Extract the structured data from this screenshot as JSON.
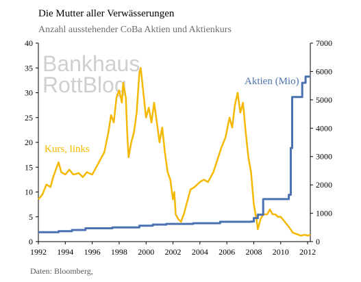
{
  "title": "Die Mutter aller Verwässerungen",
  "subtitle": "Anzahl ausstehender CoBa Aktien und Aktienkurs",
  "source": "Daten: Bloomberg,",
  "watermark": [
    "Bankhaus",
    "RottBlog"
  ],
  "colors": {
    "kurs": "#f5b800",
    "aktien": "#4a72b0",
    "axis": "#000000"
  },
  "chart_data": {
    "type": "line",
    "title": "Die Mutter aller Verwässerungen",
    "subtitle": "Anzahl ausstehender CoBa Aktien und Aktienkurs",
    "x_ticks": [
      "1992",
      "1994",
      "1996",
      "1998",
      "2000",
      "2002",
      "2004",
      "2006",
      "2008",
      "2010",
      "2012"
    ],
    "xlim": [
      1992,
      2012.2
    ],
    "y_left_ticks": [
      "0",
      "5",
      "10",
      "15",
      "20",
      "25",
      "30",
      "35",
      "40"
    ],
    "ylim_left": [
      0,
      40
    ],
    "y_right_ticks": [
      "0",
      "1000",
      "2000",
      "3000",
      "4000",
      "5000",
      "6000",
      "7000"
    ],
    "ylim_right": [
      0,
      7000
    ],
    "grid": false,
    "series": [
      {
        "name": "Kurs, links",
        "axis": "left",
        "color": "#f5b800",
        "points": [
          [
            1992.0,
            8.5
          ],
          [
            1992.3,
            9.5
          ],
          [
            1992.6,
            11.5
          ],
          [
            1992.9,
            11.0
          ],
          [
            1993.1,
            13.0
          ],
          [
            1993.3,
            14.5
          ],
          [
            1993.5,
            16.0
          ],
          [
            1993.7,
            14.0
          ],
          [
            1994.0,
            13.5
          ],
          [
            1994.3,
            14.5
          ],
          [
            1994.6,
            13.5
          ],
          [
            1995.0,
            13.8
          ],
          [
            1995.3,
            13.0
          ],
          [
            1995.6,
            14.0
          ],
          [
            1996.0,
            13.5
          ],
          [
            1996.3,
            15.0
          ],
          [
            1996.6,
            16.5
          ],
          [
            1996.9,
            18.0
          ],
          [
            1997.2,
            22.0
          ],
          [
            1997.4,
            25.5
          ],
          [
            1997.6,
            24.0
          ],
          [
            1997.8,
            29.0
          ],
          [
            1998.0,
            30.5
          ],
          [
            1998.2,
            28.0
          ],
          [
            1998.3,
            32.0
          ],
          [
            1998.5,
            29.0
          ],
          [
            1998.6,
            22.0
          ],
          [
            1998.7,
            17.0
          ],
          [
            1998.9,
            20.0
          ],
          [
            1999.1,
            22.0
          ],
          [
            1999.3,
            26.0
          ],
          [
            1999.5,
            34.0
          ],
          [
            1999.6,
            35.0
          ],
          [
            1999.8,
            30.0
          ],
          [
            2000.0,
            25.0
          ],
          [
            2000.2,
            27.0
          ],
          [
            2000.4,
            24.0
          ],
          [
            2000.6,
            28.0
          ],
          [
            2000.8,
            24.0
          ],
          [
            2001.0,
            20.0
          ],
          [
            2001.2,
            23.0
          ],
          [
            2001.4,
            18.0
          ],
          [
            2001.6,
            14.0
          ],
          [
            2001.8,
            12.5
          ],
          [
            2002.0,
            8.5
          ],
          [
            2002.1,
            10.0
          ],
          [
            2002.2,
            5.5
          ],
          [
            2002.4,
            4.5
          ],
          [
            2002.6,
            4.0
          ],
          [
            2002.8,
            5.5
          ],
          [
            2003.0,
            7.5
          ],
          [
            2003.3,
            10.5
          ],
          [
            2003.6,
            11.0
          ],
          [
            2004.0,
            12.0
          ],
          [
            2004.3,
            12.5
          ],
          [
            2004.6,
            12.0
          ],
          [
            2005.0,
            14.0
          ],
          [
            2005.3,
            16.5
          ],
          [
            2005.6,
            19.0
          ],
          [
            2005.9,
            21.0
          ],
          [
            2006.2,
            25.0
          ],
          [
            2006.4,
            23.0
          ],
          [
            2006.6,
            27.5
          ],
          [
            2006.8,
            30.0
          ],
          [
            2007.0,
            26.0
          ],
          [
            2007.2,
            28.0
          ],
          [
            2007.4,
            22.0
          ],
          [
            2007.6,
            17.0
          ],
          [
            2007.8,
            14.0
          ],
          [
            2008.0,
            7.5
          ],
          [
            2008.2,
            4.5
          ],
          [
            2008.3,
            2.5
          ],
          [
            2008.5,
            4.5
          ],
          [
            2008.7,
            5.5
          ],
          [
            2009.0,
            5.5
          ],
          [
            2009.2,
            6.5
          ],
          [
            2009.4,
            5.5
          ],
          [
            2009.6,
            5.5
          ],
          [
            2009.8,
            5.0
          ],
          [
            2010.0,
            5.0
          ],
          [
            2010.3,
            4.0
          ],
          [
            2010.6,
            3.0
          ],
          [
            2010.9,
            1.8
          ],
          [
            2011.2,
            1.5
          ],
          [
            2011.5,
            1.2
          ],
          [
            2011.8,
            1.4
          ],
          [
            2012.0,
            1.2
          ],
          [
            2012.2,
            1.4
          ]
        ]
      },
      {
        "name": "Aktien (Mio)",
        "axis": "right",
        "color": "#4a72b0",
        "step": true,
        "points": [
          [
            1992.0,
            330
          ],
          [
            1993.5,
            370
          ],
          [
            1994.5,
            410
          ],
          [
            1995.5,
            470
          ],
          [
            1997.5,
            500
          ],
          [
            1999.5,
            560
          ],
          [
            2000.5,
            600
          ],
          [
            2001.5,
            625
          ],
          [
            2003.5,
            650
          ],
          [
            2005.5,
            700
          ],
          [
            2007.8,
            710
          ],
          [
            2008.0,
            830
          ],
          [
            2008.3,
            950
          ],
          [
            2008.7,
            1500
          ],
          [
            2010.6,
            1650
          ],
          [
            2010.75,
            3300
          ],
          [
            2010.85,
            5100
          ],
          [
            2011.6,
            5600
          ],
          [
            2011.85,
            5820
          ],
          [
            2012.2,
            5820
          ]
        ]
      }
    ],
    "annotations": [
      {
        "text": "Kurs, links",
        "color": "#f5b800"
      },
      {
        "text": "Aktien (Mio)",
        "color": "#4a72b0"
      }
    ]
  }
}
